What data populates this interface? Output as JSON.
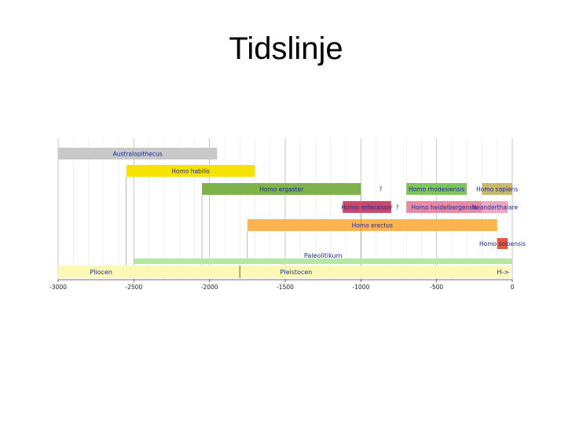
{
  "title": "Tidslinje",
  "chart_data": {
    "type": "timeline",
    "xlim": [
      -3000,
      0
    ],
    "x_ticks": [
      -3000,
      -2500,
      -2000,
      -1500,
      -1000,
      -500,
      0
    ],
    "x_tick_labels": [
      "-3000",
      "-2500",
      "-2000",
      "-1500",
      "-1000",
      "-500",
      "0"
    ],
    "colors": {
      "australopithecus": "#c8c8c8",
      "habilis": "#f5e200",
      "ergaster": "#7fb24a",
      "antecessor": "#c84a6a",
      "rhodesiensis": "#82c45c",
      "heidelbergensis": "#e88aa4",
      "sapiens": "#c8b86a",
      "neanderthal": "#f0a6c0",
      "erectus": "#fcb450",
      "soloensis": "#e05a40",
      "paleolithic": "#b4e8a4",
      "pliocene": "#fcf8b8",
      "pleistocene": "#fcf8b8"
    },
    "species": [
      {
        "label": "Australopithecus",
        "start": -3000,
        "end": -1950,
        "row": 0,
        "color_key": "australopithecus"
      },
      {
        "label": "Homo habilis",
        "start": -2550,
        "end": -1700,
        "row": 1,
        "color_key": "habilis"
      },
      {
        "label": "Homo ergaster",
        "start": -2050,
        "end": -1000,
        "row": 2,
        "color_key": "ergaster"
      },
      {
        "label": "Homo rhodesiensis",
        "start": -700,
        "end": -300,
        "row": 2,
        "color_key": "rhodesiensis"
      },
      {
        "label": "Homo sapiens",
        "start": -200,
        "end": 0,
        "row": 2,
        "color_key": "sapiens"
      },
      {
        "label": "Homo antecessor",
        "start": -1120,
        "end": -800,
        "row": 3,
        "color_key": "antecessor"
      },
      {
        "label": "Homo heidelbergensis",
        "start": -700,
        "end": -200,
        "row": 3,
        "color_key": "heidelbergensis"
      },
      {
        "label": "Neanderthalare",
        "start": -200,
        "end": -30,
        "row": 3,
        "color_key": "neanderthal"
      },
      {
        "label": "Homo erectus",
        "start": -1750,
        "end": -100,
        "row": 4,
        "color_key": "erectus"
      },
      {
        "label": "Homo soloensis",
        "start": -100,
        "end": -30,
        "row": 5,
        "color_key": "soloensis"
      }
    ],
    "question_marks": [
      {
        "label": "?",
        "x": -870,
        "row": 2
      },
      {
        "label": "?",
        "x": -760,
        "row": 3
      }
    ],
    "periods": [
      {
        "label": "Paleolitikum",
        "start": -2500,
        "end": 0,
        "row": 6,
        "color_key": "paleolithic"
      },
      {
        "label": "Pliocen",
        "start": -3000,
        "end": -1800,
        "row": 7,
        "color_key": "pliocene"
      },
      {
        "label": "Pleistocen",
        "start": -1800,
        "end": -10,
        "row": 7,
        "color_key": "pleistocene"
      }
    ],
    "end_label": "H->"
  }
}
